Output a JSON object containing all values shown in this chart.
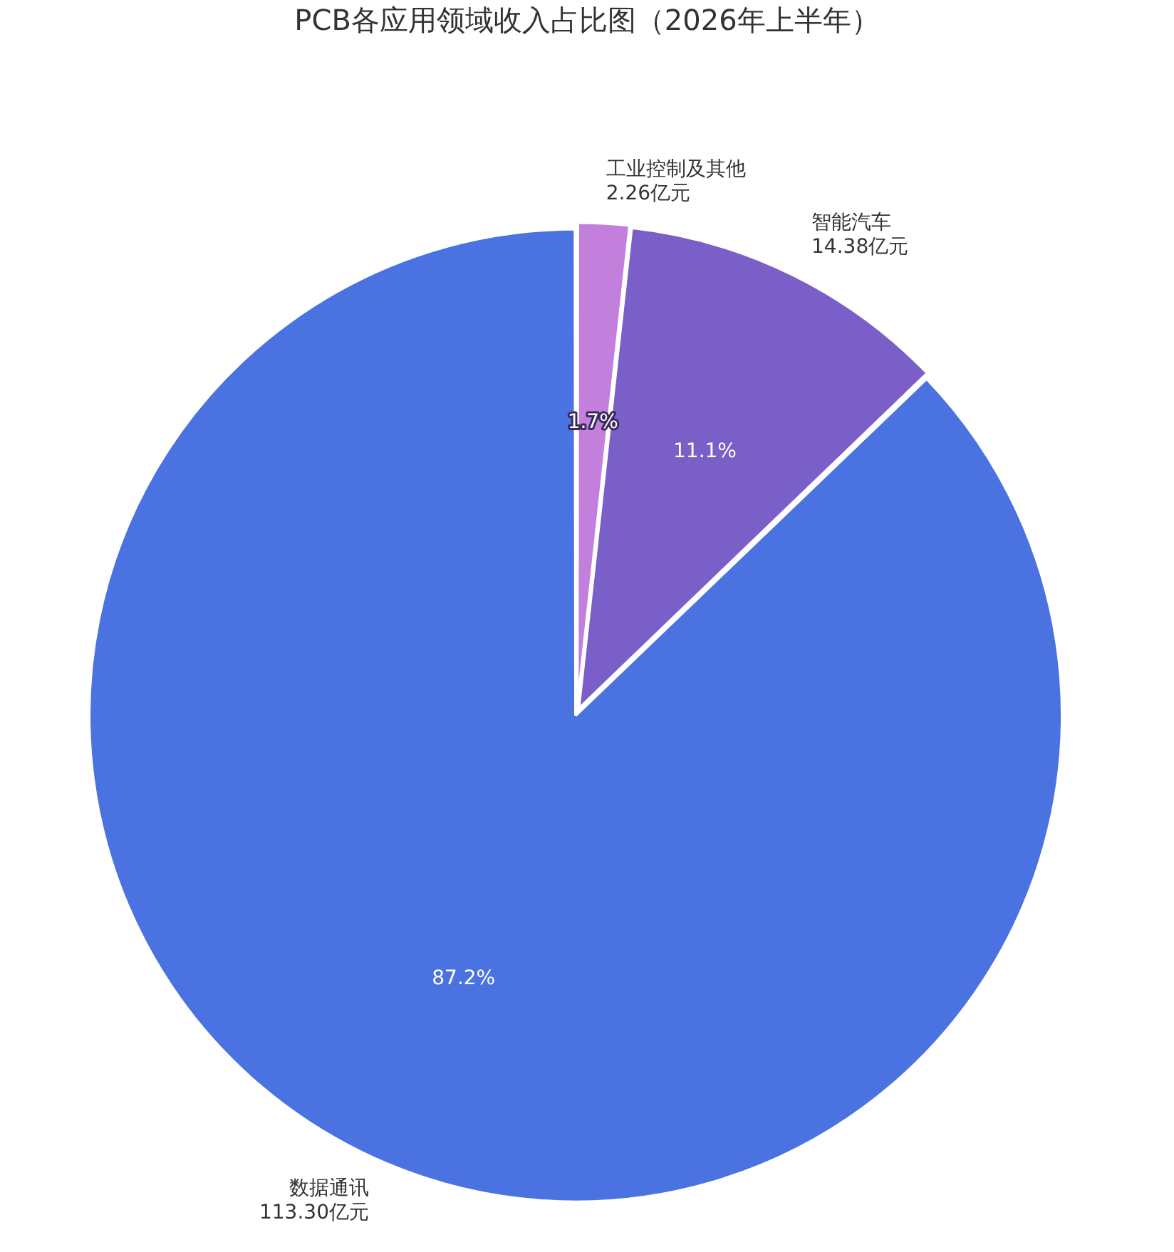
{
  "chart_data": {
    "type": "pie",
    "title": "PCB各应用领域收入占比图（2026年上半年）",
    "categories": [
      "工业控制及其他",
      "智能汽车",
      "数据通讯"
    ],
    "values": [
      2.26,
      14.38,
      113.3
    ],
    "value_labels": [
      "2.26亿元",
      "14.38亿元",
      "113.30亿元"
    ],
    "colors": [
      "#c27fdb",
      "#7b5fc9",
      "#4a72e0"
    ],
    "annotations": [
      {
        "text": "1.7%",
        "x": "工业控制及其他"
      },
      {
        "text": "11.1%",
        "x": "智能汽车"
      },
      {
        "text": "87.2%",
        "x": "数据通讯"
      }
    ],
    "legend": false
  }
}
